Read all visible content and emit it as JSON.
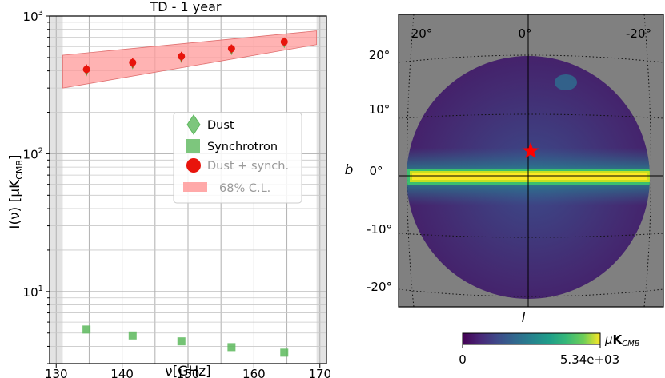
{
  "chart_data": [
    {
      "type": "scatter",
      "title": "TD - 1 year",
      "xlabel": "ν[GHz]",
      "ylabel": "I(ν) [μK",
      "ylabel_sub": "CMB",
      "ylabel_end": "]",
      "xlim": [
        129,
        171
      ],
      "ylim": [
        3,
        1000
      ],
      "yscale": "log",
      "grid": true,
      "legend_position": "center-right",
      "x_ticks": [
        130,
        140,
        150,
        160,
        170
      ],
      "y_ticks": [
        {
          "value": 10,
          "base": "10",
          "exp": "1"
        },
        {
          "value": 100,
          "base": "10",
          "exp": "2"
        },
        {
          "value": 1000,
          "base": "10",
          "exp": "3"
        }
      ],
      "excluded_bands": [
        [
          129,
          131
        ],
        [
          169.5,
          171
        ]
      ],
      "series": [
        {
          "name": "Dust",
          "marker": "thin-diamond",
          "color": "#5cb85c",
          "x": [
            134.6,
            141.6,
            149.0,
            156.6,
            164.6
          ],
          "y": [
            400,
            450,
            500,
            570,
            640
          ]
        },
        {
          "name": "Synchrotron",
          "marker": "square",
          "color": "#5cb85c",
          "x": [
            134.6,
            141.6,
            149.0,
            156.6,
            164.6
          ],
          "y": [
            5.3,
            4.8,
            4.35,
            3.95,
            3.6
          ]
        },
        {
          "name": "Dust + synch.",
          "marker": "circle",
          "color": "#e8140c",
          "x": [
            134.6,
            141.6,
            149.0,
            156.6,
            164.6
          ],
          "y": [
            410,
            460,
            510,
            580,
            650
          ],
          "yerr": [
            35,
            38,
            40,
            42,
            45
          ]
        },
        {
          "name": "68% C.L.",
          "kind": "band",
          "color": "#ff9a9a",
          "x": [
            131,
            169.5
          ],
          "lower": [
            300,
            620
          ],
          "upper": [
            520,
            780
          ]
        }
      ]
    },
    {
      "type": "heatmap",
      "projection": "gnomonic",
      "xlabel": "l",
      "ylabel": "b",
      "lon_ticks": [
        "20°",
        "0°",
        "-20°"
      ],
      "lat_ticks": [
        "20°",
        "10°",
        "0°",
        "-10°",
        "-20°"
      ],
      "marker": {
        "name": "source",
        "symbol": "star",
        "color": "#ff0000",
        "l": -0.5,
        "b": 4
      },
      "colorbar": {
        "min": "0",
        "max": "5.34e+03",
        "unit_prefix": "μ",
        "unit": "K",
        "unit_sub": "CMB"
      },
      "colors": {
        "background": "#808080",
        "low": "#440154",
        "mid": "#21908c",
        "high": "#fde725"
      }
    }
  ]
}
